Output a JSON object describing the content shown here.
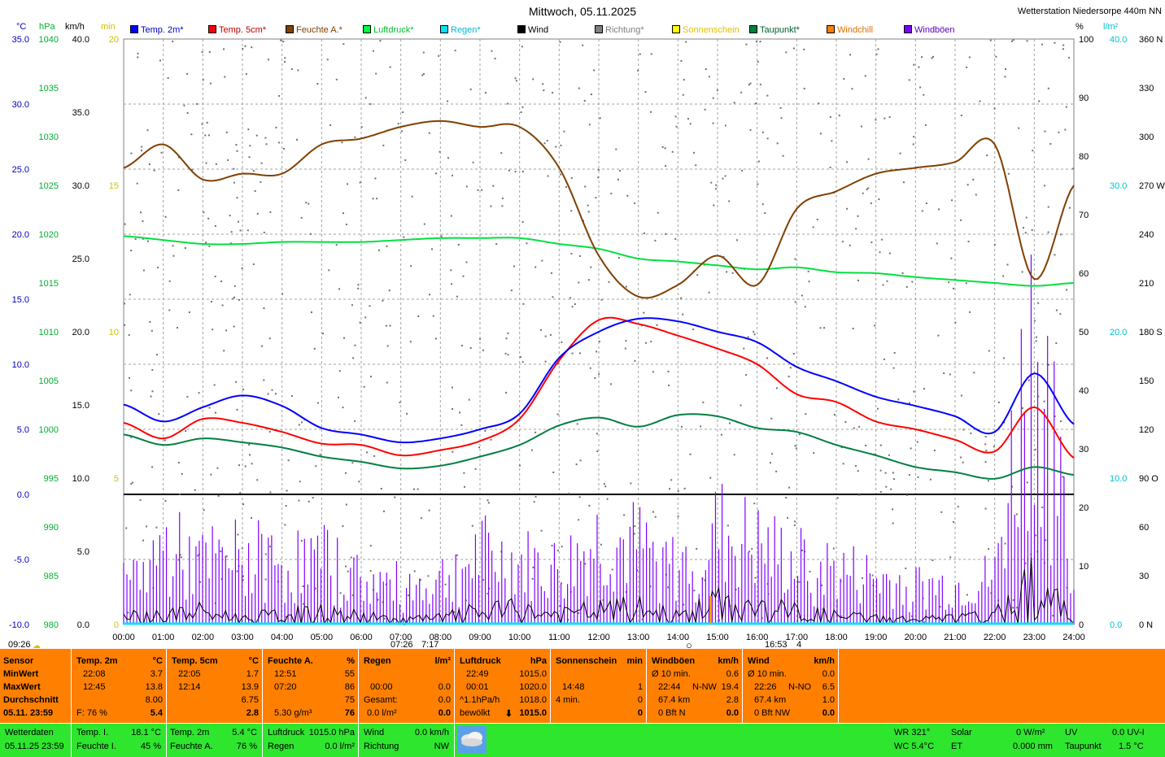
{
  "header": {
    "title": "Mittwoch, 05.11.2025",
    "station": "Wetterstation Niedersorpe 440m NN"
  },
  "units": {
    "temp": "°C",
    "hpa": "hPa",
    "kmh": "km/h",
    "min": "min",
    "pct": "%",
    "lm2": "l/m²",
    "deg": ""
  },
  "legend": [
    {
      "label": "Temp. 2m*",
      "color": "#0000ff"
    },
    {
      "label": "Temp. 5cm*",
      "color": "#ff0000"
    },
    {
      "label": "Feuchte A.*",
      "color": "#804000"
    },
    {
      "label": "Luftdruck*",
      "color": "#00ff40"
    },
    {
      "label": "Regen*",
      "color": "#00e0ff"
    },
    {
      "label": "Wind",
      "color": "#000000"
    },
    {
      "label": "Richtung*",
      "color": "#808080"
    },
    {
      "label": "Sonnenschein",
      "color": "#ffff00"
    },
    {
      "label": "Taupunkt*",
      "color": "#008040"
    },
    {
      "label": "Windchill",
      "color": "#ff8000"
    },
    {
      "label": "Windböen",
      "color": "#8000ff"
    }
  ],
  "chart_data": {
    "type": "line",
    "title": "Mittwoch, 05.11.2025",
    "x": [
      "00:00",
      "01:00",
      "02:00",
      "03:00",
      "04:00",
      "05:00",
      "06:00",
      "07:00",
      "08:00",
      "09:00",
      "10:00",
      "11:00",
      "12:00",
      "13:00",
      "14:00",
      "15:00",
      "16:00",
      "17:00",
      "18:00",
      "19:00",
      "20:00",
      "21:00",
      "22:00",
      "23:00",
      "24:00"
    ],
    "axes": {
      "temp": {
        "ticks": [
          "35.0",
          "30.0",
          "25.0",
          "20.0",
          "15.0",
          "10.0",
          "5.0",
          "0.0",
          "-5.0",
          "-10.0"
        ],
        "range": [
          -10,
          35
        ]
      },
      "hpa": {
        "ticks": [
          "1040",
          "1035",
          "1030",
          "1025",
          "1020",
          "1015",
          "1010",
          "1005",
          "1000",
          "995",
          "990",
          "985",
          "980"
        ],
        "range": [
          980,
          1040
        ]
      },
      "kmh": {
        "ticks": [
          "40.0",
          "35.0",
          "30.0",
          "25.0",
          "20.0",
          "15.0",
          "10.0",
          "5.0",
          "0.0"
        ],
        "range": [
          0,
          40
        ]
      },
      "min": {
        "ticks": [
          "20",
          "15",
          "10",
          "5",
          "0"
        ],
        "range": [
          0,
          20
        ]
      },
      "pct": {
        "ticks": [
          "100",
          "90",
          "80",
          "70",
          "60",
          "50",
          "40",
          "30",
          "20",
          "10",
          "0"
        ],
        "range": [
          0,
          100
        ]
      },
      "lm2": {
        "ticks": [
          "40.0",
          "30.0",
          "20.0",
          "10.0",
          "0.0"
        ],
        "range": [
          0,
          40
        ]
      },
      "deg": {
        "ticks": [
          "360 N",
          "330",
          "300",
          "270 W",
          "240",
          "210",
          "180 S",
          "150",
          "120",
          "90 O",
          "60",
          "30",
          "0 N"
        ],
        "range": [
          0,
          360
        ]
      }
    },
    "series": [
      {
        "name": "Temp. 2m*",
        "axis": "temp",
        "color": "#0000ff",
        "values": [
          6.9,
          5.6,
          6.7,
          7.6,
          6.8,
          5.1,
          4.6,
          4.0,
          4.3,
          5.0,
          6.2,
          10.5,
          12.5,
          13.5,
          13.3,
          12.5,
          11.7,
          9.8,
          8.7,
          7.5,
          6.8,
          6.0,
          4.8,
          9.3,
          5.4
        ]
      },
      {
        "name": "Temp. 5cm*",
        "axis": "temp",
        "color": "#ff0000",
        "values": [
          5.5,
          4.3,
          5.8,
          5.5,
          4.8,
          3.9,
          3.8,
          3.0,
          3.4,
          4.1,
          5.8,
          10.3,
          13.4,
          13.1,
          12.2,
          11.2,
          10.0,
          7.7,
          7.1,
          5.6,
          5.0,
          4.2,
          3.3,
          6.7,
          2.8
        ]
      },
      {
        "name": "Taupunkt*",
        "axis": "temp",
        "color": "#008040",
        "values": [
          4.6,
          3.8,
          4.3,
          4.0,
          3.6,
          2.9,
          2.5,
          2.0,
          2.2,
          2.9,
          3.8,
          5.3,
          5.9,
          5.2,
          6.1,
          6.0,
          5.1,
          4.8,
          3.8,
          3.0,
          2.1,
          1.7,
          1.2,
          2.1,
          1.5
        ]
      },
      {
        "name": "Luftdruck*",
        "axis": "hpa",
        "color": "#00e040",
        "values": [
          1019.8,
          1019.4,
          1019.0,
          1019.0,
          1019.2,
          1019.2,
          1019.2,
          1019.4,
          1019.6,
          1019.6,
          1019.6,
          1019.0,
          1018.5,
          1017.5,
          1017.2,
          1016.8,
          1016.4,
          1016.6,
          1016.1,
          1016.0,
          1015.6,
          1015.3,
          1015.0,
          1014.7,
          1015.0
        ]
      },
      {
        "name": "Feuchte A.*",
        "axis": "pct",
        "color": "#804000",
        "values": [
          78,
          82,
          76,
          77,
          77,
          82,
          83,
          85,
          86,
          85,
          85,
          78,
          63,
          56,
          58,
          63,
          58,
          71,
          74,
          77,
          78,
          79,
          82,
          59,
          75
        ]
      },
      {
        "name": "Wind",
        "axis": "kmh",
        "color": "#000000",
        "values": [
          0.5,
          0.6,
          0.8,
          0.4,
          0.6,
          0.7,
          0.5,
          0.3,
          0.4,
          0.8,
          0.9,
          0.6,
          0.9,
          1.0,
          0.5,
          1.3,
          1.0,
          0.8,
          0.5,
          0.4,
          0.3,
          0.4,
          0.5,
          2.8,
          0.2
        ]
      },
      {
        "name": "Windböen",
        "axis": "kmh",
        "color": "#8000ff",
        "values": [
          2.5,
          5.0,
          4.0,
          4.5,
          4.0,
          4.2,
          3.0,
          2.5,
          3.0,
          4.5,
          4.0,
          3.5,
          5.5,
          5.0,
          3.5,
          6.0,
          5.0,
          4.0,
          3.5,
          3.0,
          2.5,
          2.5,
          3.0,
          19.4,
          2.0
        ]
      }
    ]
  },
  "markers": {
    "sunrise_left": "09:26",
    "sunrise": "07:26",
    "sun_mid": "7:17",
    "sunset": "16:53",
    "sunset_num": "4"
  },
  "stats": {
    "sensor": {
      "h": "Sensor",
      "min": "MinWert",
      "max": "MaxWert",
      "avg": "Durchschnitt",
      "date": "05.11. 23:59"
    },
    "t2m": {
      "h": "Temp. 2m",
      "u": "°C",
      "min_t": "22:08",
      "min_v": "3.7",
      "max_t": "12:45",
      "max_v": "13.8",
      "avg": "8.00",
      "f": "F: 76 %",
      "cur": "5.4"
    },
    "t5cm": {
      "h": "Temp. 5cm",
      "u": "°C",
      "min_t": "22:05",
      "min_v": "1.7",
      "max_t": "12:14",
      "max_v": "13.9",
      "avg": "6.75",
      "cur": "2.8"
    },
    "feuchte": {
      "h": "Feuchte A.",
      "u": "%",
      "min_t": "12:51",
      "min_v": "55",
      "max_t": "07:20",
      "max_v": "86",
      "avg": "75",
      "abs": "5.30 g/m³",
      "cur": "76"
    },
    "regen": {
      "h": "Regen",
      "u": "l/m²",
      "t1": "00:00",
      "v1": "0.0",
      "gesamt": "Gesamt:",
      "v2": "0.0",
      "lm": "0.0 l/m²",
      "cur": "0.0"
    },
    "luftdruck": {
      "h": "Luftdruck",
      "u": "hPa",
      "min_t": "22:49",
      "min_v": "1015.0",
      "max_t": "00:01",
      "max_v": "1020.0",
      "trend_l": "^1.1hPa/h",
      "trend_v": "1018.0",
      "wx": "bewölkt",
      "cur": "1015.0"
    },
    "sonne": {
      "h": "Sonnenschein",
      "u": "min",
      "t": "14:48",
      "v": "1",
      "d": "4 min.",
      "dv": "0",
      "cur": "0"
    },
    "boeen": {
      "h": "Windböen",
      "u": "km/h",
      "l1": "Ø 10 min.",
      "v1": "0.6",
      "t2": "22:44",
      "d2": "N-NW",
      "v2": "19.4",
      "km": "67.4 km",
      "kmv": "2.8",
      "bft": "0 Bft N",
      "cur": "0.0"
    },
    "wind": {
      "h": "Wind",
      "u": "km/h",
      "l1": "Ø 10 min.",
      "v1": "0.0",
      "t2": "22:26",
      "d2": "N-NO",
      "v2": "6.5",
      "km": "67.4 km",
      "kmv": "1.0",
      "bft": "0 Bft NW",
      "cur": "0.0"
    }
  },
  "current": {
    "label": "Wetterdaten",
    "dt": "05.11.25 23:59",
    "ti_l": "Temp. I.",
    "ti_v": "18.1 °C",
    "fi_l": "Feuchte I.",
    "fi_v": "45 %",
    "t2_l": "Temp. 2m",
    "t2_v": "5.4 °C",
    "fa_l": "Feuchte A.",
    "fa_v": "76 %",
    "ld_l": "Luftdruck",
    "ld_v": "1015.0 hPa",
    "rg_l": "Regen",
    "rg_v": "0.0 l/m²",
    "wi_l": "Wind",
    "wi_v": "0.0 km/h",
    "ri_l": "Richtung",
    "ri_v": "NW",
    "wr": "WR 321°",
    "wc": "WC 5.4°C",
    "so_l": "Solar",
    "so_v": "0 W/m²",
    "et_l": "ET",
    "et_v": "0.000 mm",
    "uv_l": "UV",
    "uv_v": "0.0 UV-I",
    "tp_l": "Taupunkt",
    "tp_v": "1.5 °C"
  }
}
